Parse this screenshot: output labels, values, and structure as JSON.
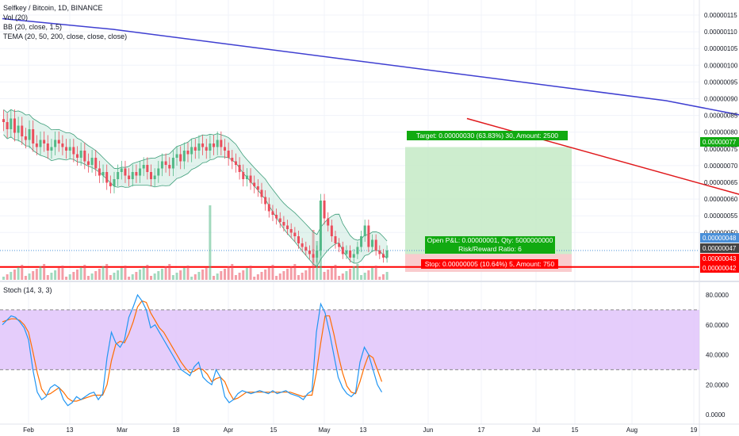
{
  "legend": {
    "symbol": "Selfkey / Bitcoin, 1D, BINANCE",
    "vol": "Vol (20)",
    "bb": "BB (20, close, 1.5)",
    "tema": "TEMA (20, 50, 200, close, close, close)",
    "stoch": "Stoch (14, 3, 3)"
  },
  "colors": {
    "up": "#53b987",
    "down": "#eb4d5c",
    "tema200": "#3f3fd1",
    "bb_fill": "#9fd8c2",
    "stoch_fill": "#e1c4fa",
    "stoch_k": "#2196f3",
    "stoch_d": "#ff6d00",
    "trendline": "#e0181b",
    "support": "#ff0000",
    "target_fill": "#c8ebc9",
    "stop_fill": "#f8c7c9"
  },
  "price_axis": {
    "ticks": [
      "0.00000115",
      "0.00000110",
      "0.00000105",
      "0.00000100",
      "0.00000095",
      "0.00000090",
      "0.00000085",
      "0.00000080",
      "0.00000075",
      "0.00000070",
      "0.00000065",
      "0.00000060",
      "0.00000055",
      "0.00000050"
    ],
    "badges": [
      {
        "text": "0.00000077",
        "color": "#11aa11"
      },
      {
        "text": "0.00000048",
        "color": "#4a90d9"
      },
      {
        "text": "0.00000047",
        "color": "#444444"
      },
      {
        "text": "0.00000043",
        "color": "#ff0000"
      },
      {
        "text": "0.00000042",
        "color": "#ff0000"
      }
    ]
  },
  "stoch_axis": {
    "ticks": [
      "80.0000",
      "60.0000",
      "40.0000",
      "20.0000",
      "0.0000"
    ]
  },
  "time_axis": [
    "Feb",
    "13",
    "Mar",
    "18",
    "Apr",
    "15",
    "May",
    "13",
    "Jun",
    "17",
    "Jul",
    "15",
    "Aug",
    "19"
  ],
  "position": {
    "target_label": "Target: 0.00000030 (63.83%) 30, Amount: 2500",
    "open_label_1": "Open P&L: 0.00000001, Qty: 5000000000",
    "open_label_2": "Risk/Reward Ratio: 6",
    "stop_label": "Stop: 0.00000005 (10.64%) 5, Amount: 750"
  },
  "chart_data": {
    "type": "candlestick",
    "price_range": [
      4e-07,
      1.2e-06
    ],
    "stoch_range": [
      0,
      80
    ],
    "stoch_bands": [
      70,
      30
    ],
    "target_price": 7.7e-07,
    "entry_price": 4.7e-07,
    "stop_price": 4.2e-07,
    "support_level": 4.34e-07,
    "tema200": [
      [
        0,
        1.13e-06
      ],
      [
        30,
        1.1e-06
      ],
      [
        60,
        1.06e-06
      ],
      [
        90,
        1.02e-06
      ],
      [
        120,
        9.8e-07
      ],
      [
        150,
        9.4e-07
      ],
      [
        180,
        9e-07
      ],
      [
        210,
        8.4e-07
      ],
      [
        240,
        7.8e-07
      ]
    ],
    "trendline": [
      [
        126,
        8.5e-07
      ],
      [
        258,
        4.7e-07
      ]
    ],
    "close": [
      8.4e-07,
      8.2e-07,
      8.5e-07,
      8.1e-07,
      8.3e-07,
      8e-07,
      7.9e-07,
      8.2e-07,
      7.8e-07,
      7.7e-07,
      7.9e-07,
      7.8e-07,
      7.6e-07,
      7.7e-07,
      7.9e-07,
      7.8e-07,
      7.7e-07,
      7.6e-07,
      7.7e-07,
      7.5e-07,
      7.4e-07,
      7.6e-07,
      7.3e-07,
      7.2e-07,
      7.4e-07,
      7.1e-07,
      6.9e-07,
      7e-07,
      6.7e-07,
      6.6e-07,
      6.8e-07,
      7e-07,
      7.1e-07,
      6.9e-07,
      6.8e-07,
      7e-07,
      6.9e-07,
      7.1e-07,
      7.2e-07,
      7e-07,
      6.8e-07,
      6.9e-07,
      7.1e-07,
      7.3e-07,
      7.2e-07,
      7.1e-07,
      7.4e-07,
      7.5e-07,
      7.3e-07,
      7.6e-07,
      7.5e-07,
      7.7e-07,
      7.6e-07,
      7.8e-07,
      7.7e-07,
      7.6e-07,
      7.8e-07,
      7.7e-07,
      7.9e-07,
      7.7e-07,
      7.6e-07,
      7.4e-07,
      7.3e-07,
      7.2e-07,
      7e-07,
      6.8e-07,
      6.9e-07,
      6.7e-07,
      6.6e-07,
      6.5e-07,
      6.3e-07,
      6.1e-07,
      5.9e-07,
      5.8e-07,
      5.7e-07,
      5.6e-07,
      5.5e-07,
      5.4e-07,
      5.3e-07,
      5.2e-07,
      5e-07,
      4.9e-07,
      4.8e-07,
      4.7e-07,
      4.6e-07,
      4.8e-07,
      6.2e-07,
      5.7e-07,
      5.5e-07,
      5.2e-07,
      5e-07,
      4.9e-07,
      4.7e-07,
      4.8e-07,
      4.6e-07,
      4.7e-07,
      4.9e-07,
      5.2e-07,
      5.5e-07,
      4.9e-07,
      5.1e-07,
      4.8e-07,
      4.7e-07,
      4.6e-07,
      4.8e-07
    ],
    "stoch_k": [
      60,
      63,
      66,
      65,
      62,
      58,
      50,
      30,
      15,
      10,
      12,
      18,
      20,
      18,
      10,
      6,
      8,
      12,
      10,
      12,
      14,
      15,
      10,
      14,
      38,
      55,
      48,
      45,
      50,
      65,
      72,
      80,
      76,
      70,
      58,
      60,
      55,
      50,
      45,
      40,
      35,
      30,
      28,
      26,
      32,
      35,
      25,
      22,
      20,
      30,
      25,
      12,
      8,
      10,
      14,
      16,
      15,
      14,
      15,
      16,
      15,
      14,
      16,
      14,
      15,
      16,
      14,
      13,
      12,
      10,
      14,
      16,
      55,
      74,
      68,
      55,
      40,
      25,
      18,
      14,
      12,
      15,
      35,
      45,
      40,
      30,
      20,
      15
    ],
    "stoch_d": [
      62,
      63,
      64,
      64,
      63,
      60,
      55,
      42,
      28,
      17,
      13,
      14,
      16,
      18,
      15,
      11,
      9,
      9,
      10,
      11,
      12,
      13,
      13,
      13,
      20,
      36,
      47,
      49,
      48,
      54,
      62,
      72,
      76,
      75,
      68,
      63,
      58,
      55,
      50,
      45,
      40,
      35,
      31,
      28,
      29,
      31,
      30,
      27,
      22,
      24,
      25,
      22,
      15,
      10,
      11,
      13,
      15,
      15,
      15,
      15,
      15,
      15,
      15,
      15,
      15,
      15,
      15,
      14,
      13,
      12,
      13,
      13,
      28,
      48,
      66,
      66,
      54,
      40,
      28,
      19,
      15,
      14,
      22,
      32,
      40,
      38,
      30,
      22
    ]
  }
}
